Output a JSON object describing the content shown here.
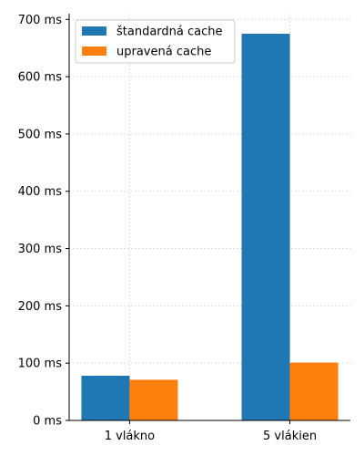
{
  "chart_data": {
    "type": "bar",
    "title": "",
    "xlabel": "",
    "ylabel": "",
    "categories": [
      "1 vlákno",
      "5 vlákien"
    ],
    "series": [
      {
        "name": "štandardná cache",
        "color": "#1f77b4",
        "values": [
          78,
          675
        ]
      },
      {
        "name": "upravená cache",
        "color": "#ff7f0e",
        "values": [
          71,
          101
        ]
      }
    ],
    "ylim": [
      0,
      710
    ],
    "yticks": [
      0,
      100,
      200,
      300,
      400,
      500,
      600,
      700
    ],
    "ytick_labels": [
      "0 ms",
      "100 ms",
      "200 ms",
      "300 ms",
      "400 ms",
      "500 ms",
      "600 ms",
      "700 ms"
    ],
    "grid": true,
    "legend_position": "top-left"
  }
}
